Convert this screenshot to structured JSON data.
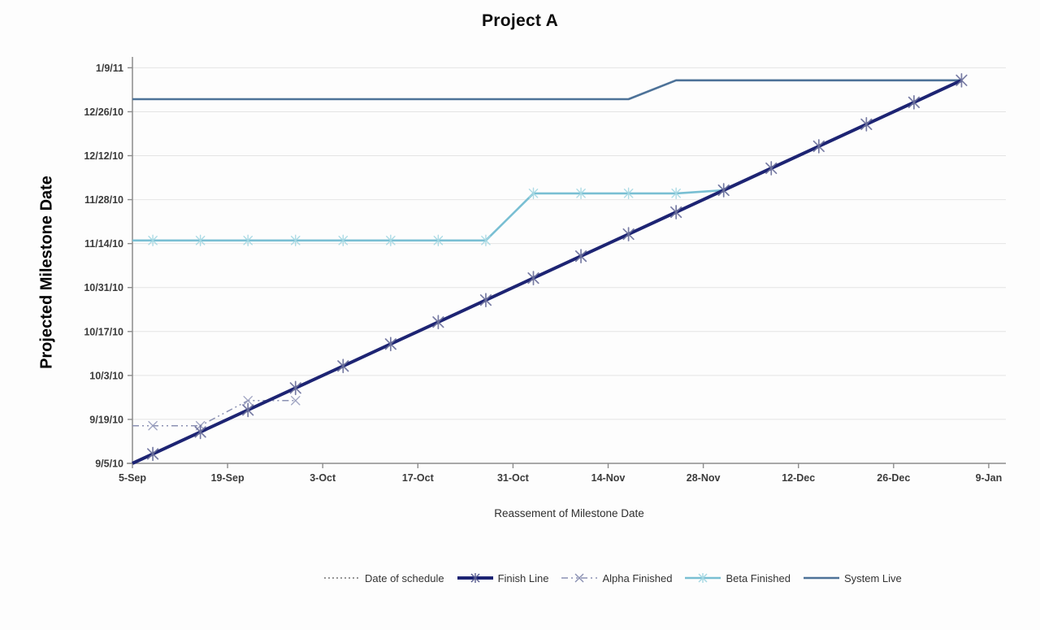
{
  "title": "Project A",
  "axes": {
    "y_title": "Projected Milestone Date",
    "x_title": "Reassement of Milestone Date",
    "y_ticks": [
      "9/5/10",
      "9/19/10",
      "10/3/10",
      "10/17/10",
      "10/31/10",
      "11/14/10",
      "11/28/10",
      "12/12/10",
      "12/26/10",
      "1/9/11"
    ],
    "x_ticks": [
      "5-Sep",
      "19-Sep",
      "3-Oct",
      "17-Oct",
      "31-Oct",
      "14-Nov",
      "28-Nov",
      "12-Dec",
      "26-Dec",
      "9-Jan"
    ]
  },
  "legend": {
    "items": [
      {
        "label": "Date of schedule",
        "color": "#595959",
        "line": "dotted",
        "width": 1.3,
        "marker": "none",
        "marker_color": "#595959"
      },
      {
        "label": "Finish Line",
        "color": "#1d2473",
        "line": "solid",
        "width": 4,
        "marker": "star",
        "marker_color": "#5a5f92"
      },
      {
        "label": "Alpha Finished",
        "color": "#8b91b3",
        "line": "dashdot",
        "width": 1.5,
        "marker": "x",
        "marker_color": "#8b91b3"
      },
      {
        "label": "Beta Finished",
        "color": "#79bfd3",
        "line": "solid",
        "width": 2.6,
        "marker": "star",
        "marker_color": "#a5d8e3"
      },
      {
        "label": "System Live",
        "color": "#4d7298",
        "line": "solid",
        "width": 2.6,
        "marker": "none",
        "marker_color": "#4d7298"
      }
    ]
  },
  "chart_data": {
    "type": "line",
    "title": "Project A",
    "xlabel": "Reassement of Milestone Date",
    "ylabel": "Projected Milestone Date",
    "x_axis": {
      "first_tick": "5-Sep",
      "last_tick": "9-Jan",
      "tick_interval_days": 14
    },
    "y_axis": {
      "first_tick": "9/5/10",
      "last_tick": "1/9/11",
      "tick_interval_days": 14
    },
    "grid": "horizontal",
    "legend_position": "bottom",
    "categories": [
      "8-Sep",
      "15-Sep",
      "22-Sep",
      "29-Sep",
      "6-Oct",
      "13-Oct",
      "20-Oct",
      "27-Oct",
      "3-Nov",
      "10-Nov",
      "17-Nov",
      "24-Nov",
      "1-Dec",
      "8-Dec",
      "15-Dec",
      "22-Dec",
      "29-Dec",
      "5-Jan"
    ],
    "series": [
      {
        "name": "Date of schedule",
        "color": "#595959",
        "line": "dotted",
        "width": 1.3,
        "marker": "none",
        "marker_color": "#595959",
        "axis_start_value": null,
        "values": []
      },
      {
        "name": "System Live",
        "color": "#4d7298",
        "line": "solid",
        "width": 2.6,
        "marker": "none",
        "marker_color": "#4d7298",
        "axis_start_value": "12/30/10",
        "values": [
          "12/30/10",
          "12/30/10",
          "12/30/10",
          "12/30/10",
          "12/30/10",
          "12/30/10",
          "12/30/10",
          "12/30/10",
          "12/30/10",
          "12/30/10",
          "12/30/10",
          "1/5/11",
          "1/5/11",
          "1/5/11",
          "1/5/11",
          "1/5/11",
          "1/5/11",
          "1/5/11"
        ]
      },
      {
        "name": "Beta Finished",
        "color": "#79bfd3",
        "line": "solid",
        "width": 2.6,
        "marker": "star",
        "marker_color": "#a5d8e3",
        "axis_start_value": "11/15/10",
        "values": [
          "11/15/10",
          "11/15/10",
          "11/15/10",
          "11/15/10",
          "11/15/10",
          "11/15/10",
          "11/15/10",
          "11/15/10",
          "11/30/10",
          "11/30/10",
          "11/30/10",
          "11/30/10",
          "12/1/10",
          null,
          null,
          null,
          null,
          null
        ]
      },
      {
        "name": "Alpha Finished",
        "color": "#8b91b3",
        "line": "dashdot",
        "width": 1.5,
        "marker": "x",
        "marker_color": "#989dbd",
        "axis_start_value": "9/17/10",
        "values": [
          "9/17/10",
          "9/17/10",
          "9/25/10",
          "9/25/10",
          null,
          null,
          null,
          null,
          null,
          null,
          null,
          null,
          null,
          null,
          null,
          null,
          null,
          null
        ]
      },
      {
        "name": "Finish Line",
        "color": "#1d2473",
        "line": "solid",
        "width": 4,
        "marker": "star",
        "marker_color": "#6a6f9b",
        "axis_start_value": "9/5/10",
        "values": [
          "9/8/10",
          "9/15/10",
          "9/22/10",
          "9/29/10",
          "10/6/10",
          "10/13/10",
          "10/20/10",
          "10/27/10",
          "11/3/10",
          "11/10/10",
          "11/17/10",
          "11/24/10",
          "12/1/10",
          "12/8/10",
          "12/15/10",
          "12/22/10",
          "12/29/10",
          "1/5/11"
        ]
      }
    ]
  }
}
